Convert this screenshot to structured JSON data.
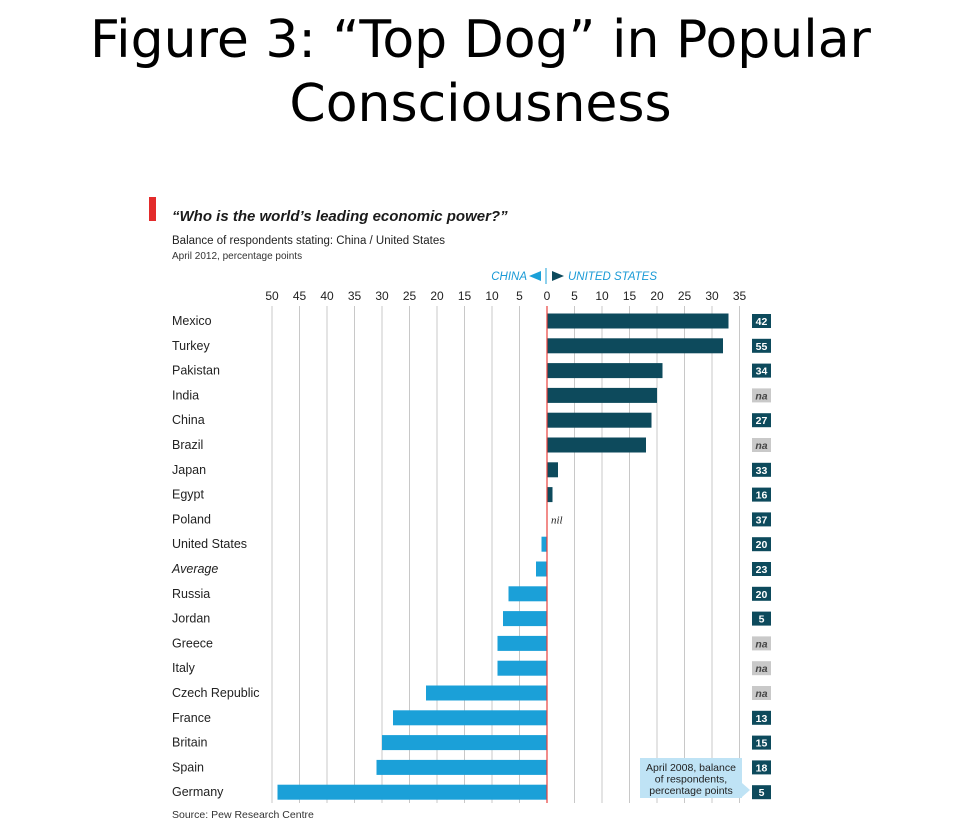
{
  "slide": {
    "title_line1": "Figure 3: “Top Dog” in Popular",
    "title_line2": "Consciousness"
  },
  "chart_data": {
    "type": "bar",
    "orientation": "horizontal",
    "title": "“Who is the world’s leading economic power?”",
    "subtitle": "Balance of respondents stating: China / United States",
    "subtitle2": "April 2012, percentage points",
    "direction_left": "CHINA",
    "direction_right": "UNITED STATES",
    "x_tick_labels": [
      "50",
      "45",
      "40",
      "35",
      "30",
      "25",
      "20",
      "15",
      "10",
      "5",
      "0",
      "5",
      "10",
      "15",
      "20",
      "25",
      "30",
      "35"
    ],
    "xlim": [
      -50,
      35
    ],
    "grid": true,
    "colors": {
      "united_states": "#0d4a5c",
      "china": "#1ba0d8",
      "zero_line": "#e8413c",
      "na_badge": "#c9c9c9"
    },
    "categories": [
      "Mexico",
      "Turkey",
      "Pakistan",
      "India",
      "China",
      "Brazil",
      "Japan",
      "Egypt",
      "Poland",
      "United States",
      "Average",
      "Russia",
      "Jordan",
      "Greece",
      "Italy",
      "Czech Republic",
      "France",
      "Britain",
      "Spain",
      "Germany"
    ],
    "values": [
      33,
      32,
      21,
      20,
      19,
      18,
      2,
      1,
      0,
      -1,
      -2,
      -7,
      -8,
      -9,
      -9,
      -22,
      -28,
      -30,
      -31,
      -49
    ],
    "value_labels": [
      "",
      "",
      "",
      "",
      "",
      "",
      "",
      "",
      "nil",
      "",
      "",
      "",
      "",
      "",
      "",
      "",
      "",
      "",
      "",
      ""
    ],
    "april_2008": [
      "42",
      "55",
      "34",
      "na",
      "27",
      "na",
      "33",
      "16",
      "37",
      "20",
      "23",
      "20",
      "5",
      "na",
      "na",
      "na",
      "13",
      "15",
      "18",
      "5"
    ],
    "april_2008_note": [
      "April 2008, balance",
      "of respondents,",
      "percentage points"
    ],
    "source": "Source: Pew Research Centre"
  }
}
